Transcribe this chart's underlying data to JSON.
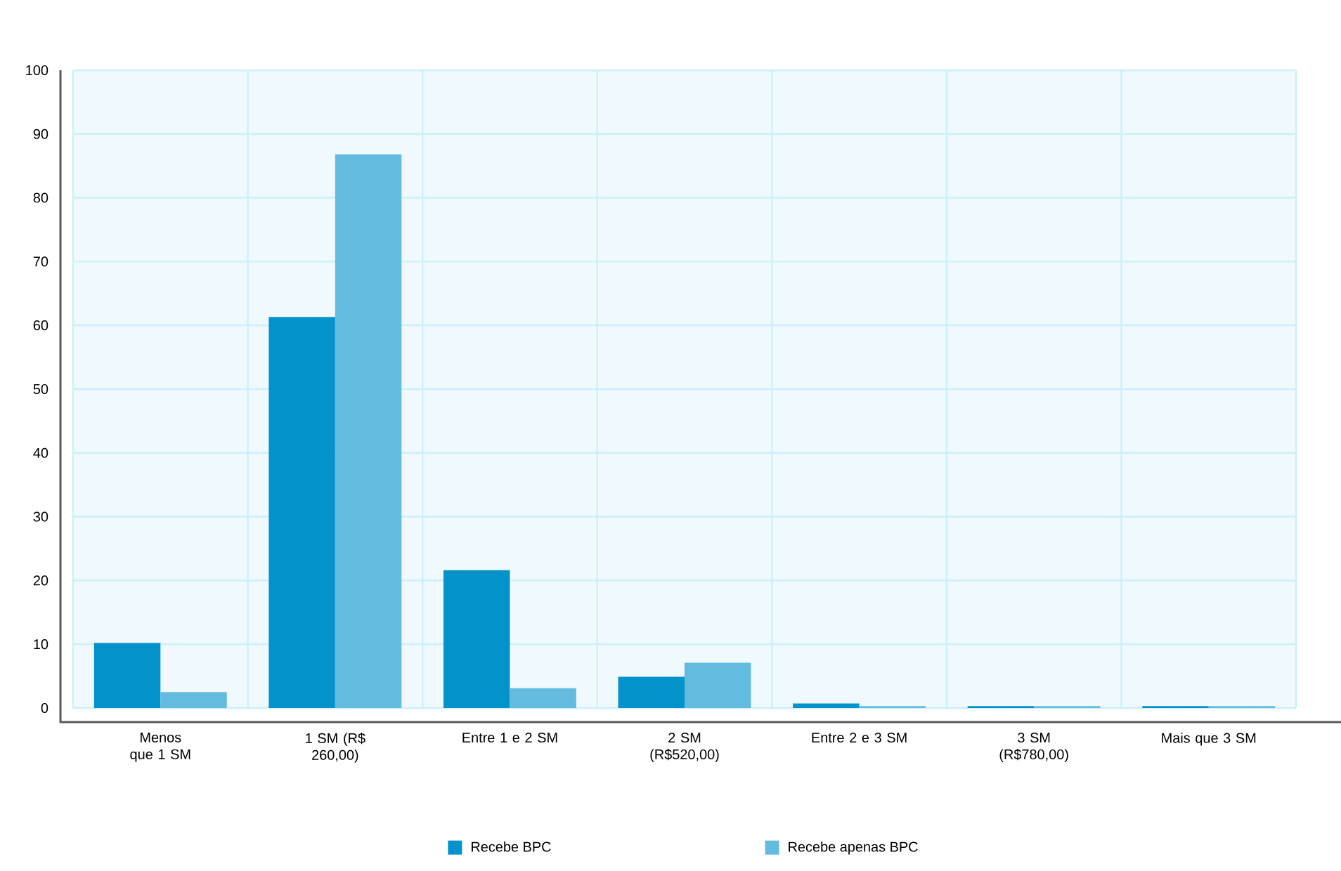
{
  "chart_data": {
    "type": "bar",
    "categories": [
      "Menos que 1 SM",
      "1 SM (R$ 260,00)",
      "Entre 1 e 2 SM",
      "2 SM (R$520,00)",
      "Entre 2 e 3 SM",
      "3 SM (R$780,00)",
      "Mais que 3 SM"
    ],
    "series": [
      {
        "name": "Recebe BPC",
        "color": "#0392c9",
        "values": [
          10.2,
          61.3,
          21.6,
          4.9,
          0.7,
          0.3,
          0.3
        ]
      },
      {
        "name": "Recebe apenas BPC",
        "color": "#63bce0",
        "values": [
          2.5,
          86.8,
          3.1,
          7.1,
          0.3,
          0.3,
          0.3
        ]
      }
    ],
    "ylim": [
      0,
      100
    ],
    "yticks": [
      0,
      10,
      20,
      30,
      40,
      50,
      60,
      70,
      80,
      90,
      100
    ],
    "grid": true,
    "legend": "bottom"
  }
}
